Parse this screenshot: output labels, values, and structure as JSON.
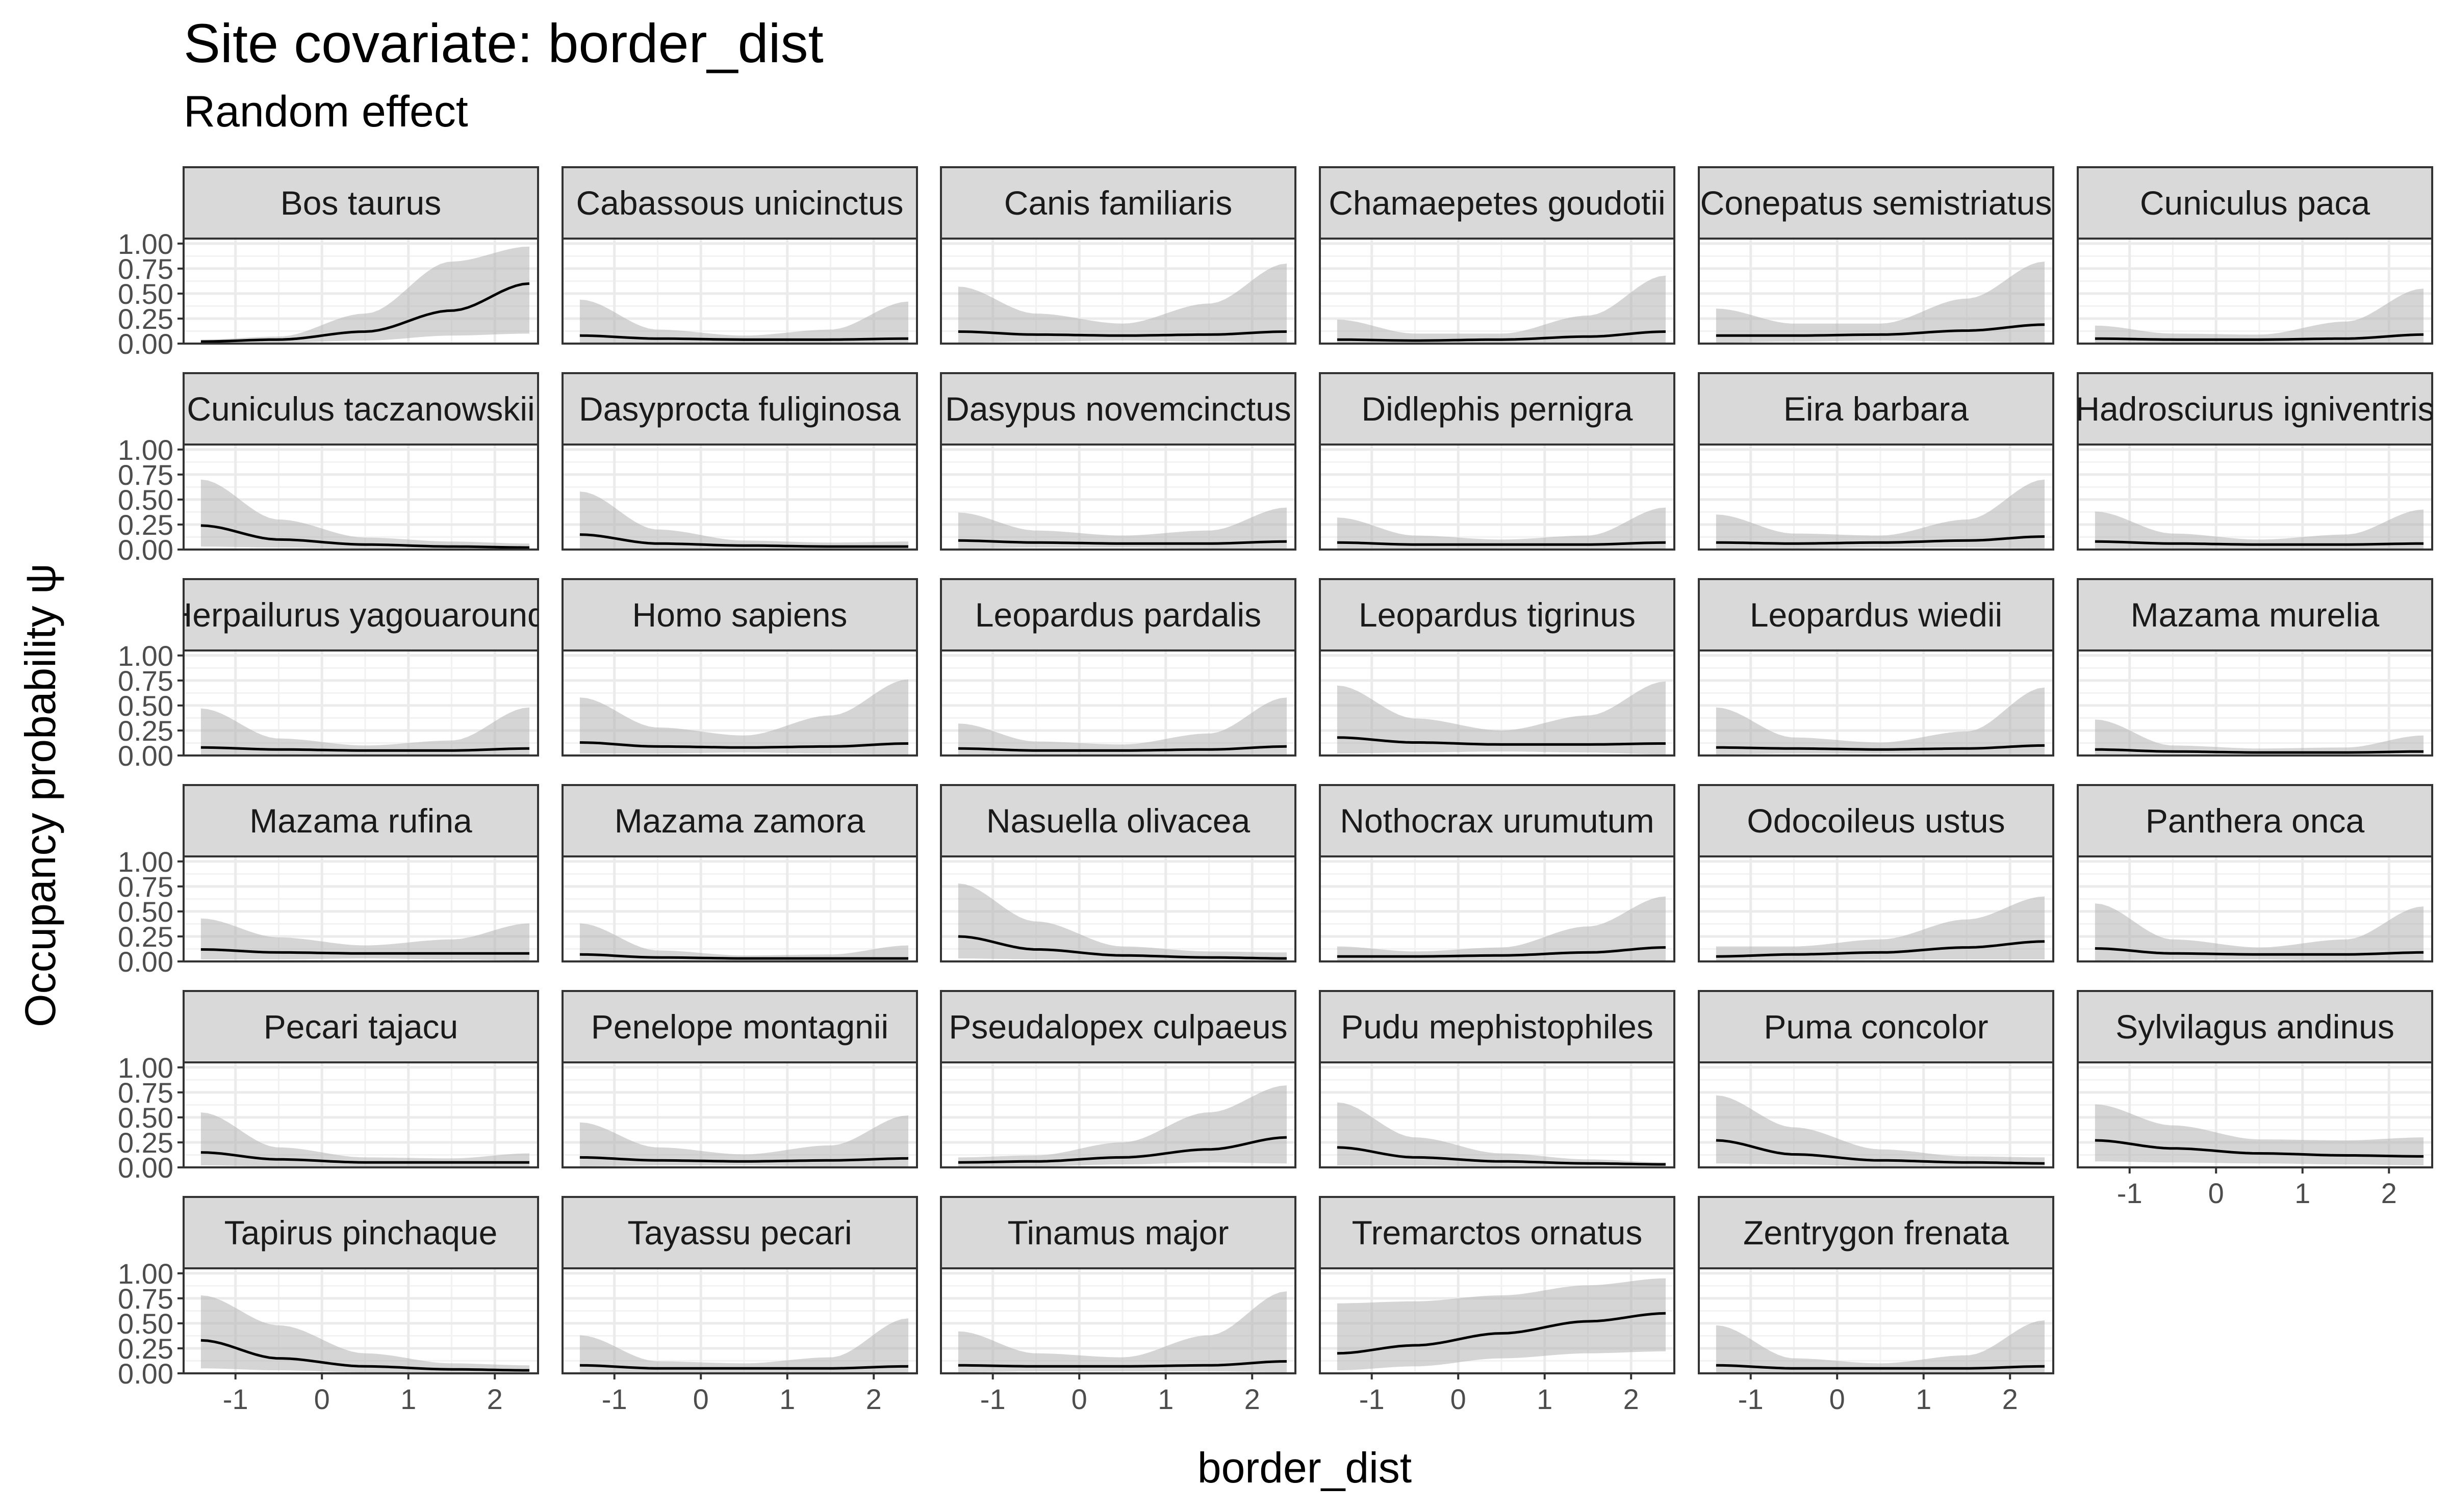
{
  "chart_data": {
    "type": "line",
    "title": "Site covariate: border_dist",
    "subtitle": "Random effect",
    "xlabel": "border_dist",
    "ylabel": "Occupancy probability  ψ",
    "xlim": [
      -1.6,
      2.5
    ],
    "ylim": [
      0,
      1.05
    ],
    "x_ticks": [
      "-1",
      "0",
      "1",
      "2"
    ],
    "y_ticks": [
      "0.00",
      "0.25",
      "0.50",
      "0.75",
      "1.00"
    ],
    "grid": true,
    "x": [
      -1.4,
      -0.5,
      0.5,
      1.5,
      2.4
    ],
    "panels": [
      {
        "name": "Bos taurus",
        "mean": [
          0.02,
          0.04,
          0.12,
          0.33,
          0.6
        ],
        "upper": [
          0.04,
          0.07,
          0.3,
          0.82,
          0.97
        ],
        "lower": [
          0.0,
          0.01,
          0.03,
          0.08,
          0.1
        ]
      },
      {
        "name": "Cabassous unicinctus",
        "mean": [
          0.08,
          0.05,
          0.04,
          0.04,
          0.05
        ],
        "upper": [
          0.44,
          0.14,
          0.08,
          0.14,
          0.42
        ],
        "lower": [
          0.01,
          0.01,
          0.01,
          0.01,
          0.01
        ]
      },
      {
        "name": "Canis familiaris",
        "mean": [
          0.12,
          0.09,
          0.08,
          0.09,
          0.12
        ],
        "upper": [
          0.57,
          0.3,
          0.2,
          0.4,
          0.8
        ],
        "lower": [
          0.01,
          0.02,
          0.03,
          0.02,
          0.01
        ]
      },
      {
        "name": "Chamaepetes goudotii",
        "mean": [
          0.04,
          0.03,
          0.04,
          0.07,
          0.12
        ],
        "upper": [
          0.24,
          0.1,
          0.1,
          0.28,
          0.68
        ],
        "lower": [
          0.0,
          0.01,
          0.01,
          0.01,
          0.01
        ]
      },
      {
        "name": "Conepatus semistriatus",
        "mean": [
          0.08,
          0.08,
          0.09,
          0.13,
          0.19
        ],
        "upper": [
          0.35,
          0.2,
          0.2,
          0.45,
          0.82
        ],
        "lower": [
          0.01,
          0.02,
          0.03,
          0.02,
          0.01
        ]
      },
      {
        "name": "Cuniculus paca",
        "mean": [
          0.05,
          0.04,
          0.04,
          0.05,
          0.09
        ],
        "upper": [
          0.18,
          0.1,
          0.09,
          0.22,
          0.55
        ],
        "lower": [
          0.0,
          0.01,
          0.01,
          0.01,
          0.01
        ]
      },
      {
        "name": "Cuniculus taczanowskii",
        "mean": [
          0.24,
          0.1,
          0.05,
          0.03,
          0.02
        ],
        "upper": [
          0.7,
          0.3,
          0.12,
          0.08,
          0.06
        ],
        "lower": [
          0.03,
          0.02,
          0.01,
          0.0,
          0.0
        ]
      },
      {
        "name": "Dasyprocta fuliginosa",
        "mean": [
          0.15,
          0.06,
          0.04,
          0.03,
          0.03
        ],
        "upper": [
          0.58,
          0.2,
          0.09,
          0.07,
          0.08
        ],
        "lower": [
          0.01,
          0.01,
          0.01,
          0.0,
          0.0
        ]
      },
      {
        "name": "Dasypus novemcinctus",
        "mean": [
          0.09,
          0.07,
          0.06,
          0.06,
          0.08
        ],
        "upper": [
          0.37,
          0.19,
          0.14,
          0.19,
          0.42
        ],
        "lower": [
          0.01,
          0.02,
          0.02,
          0.01,
          0.01
        ]
      },
      {
        "name": "Didlephis pernigra",
        "mean": [
          0.07,
          0.05,
          0.05,
          0.05,
          0.07
        ],
        "upper": [
          0.32,
          0.14,
          0.1,
          0.14,
          0.42
        ],
        "lower": [
          0.01,
          0.01,
          0.01,
          0.01,
          0.01
        ]
      },
      {
        "name": "Eira barbara",
        "mean": [
          0.07,
          0.06,
          0.07,
          0.09,
          0.13
        ],
        "upper": [
          0.35,
          0.16,
          0.14,
          0.3,
          0.7
        ],
        "lower": [
          0.01,
          0.01,
          0.02,
          0.02,
          0.01
        ]
      },
      {
        "name": "Hadrosciurus igniventris",
        "mean": [
          0.08,
          0.06,
          0.05,
          0.05,
          0.06
        ],
        "upper": [
          0.38,
          0.16,
          0.1,
          0.15,
          0.4
        ],
        "lower": [
          0.01,
          0.01,
          0.01,
          0.01,
          0.01
        ]
      },
      {
        "name": "Herpailurus yagouaroundi",
        "mean": [
          0.08,
          0.06,
          0.05,
          0.05,
          0.07
        ],
        "upper": [
          0.47,
          0.17,
          0.1,
          0.15,
          0.48
        ],
        "lower": [
          0.01,
          0.01,
          0.01,
          0.01,
          0.01
        ]
      },
      {
        "name": "Homo sapiens",
        "mean": [
          0.13,
          0.09,
          0.08,
          0.09,
          0.12
        ],
        "upper": [
          0.58,
          0.28,
          0.2,
          0.4,
          0.76
        ],
        "lower": [
          0.02,
          0.02,
          0.03,
          0.02,
          0.01
        ]
      },
      {
        "name": "Leopardus pardalis",
        "mean": [
          0.07,
          0.05,
          0.05,
          0.06,
          0.09
        ],
        "upper": [
          0.32,
          0.14,
          0.11,
          0.22,
          0.58
        ],
        "lower": [
          0.01,
          0.01,
          0.01,
          0.01,
          0.01
        ]
      },
      {
        "name": "Leopardus tigrinus",
        "mean": [
          0.18,
          0.13,
          0.11,
          0.11,
          0.12
        ],
        "upper": [
          0.7,
          0.37,
          0.25,
          0.4,
          0.74
        ],
        "lower": [
          0.02,
          0.03,
          0.04,
          0.03,
          0.01
        ]
      },
      {
        "name": "Leopardus wiedii",
        "mean": [
          0.08,
          0.07,
          0.06,
          0.07,
          0.1
        ],
        "upper": [
          0.48,
          0.18,
          0.13,
          0.24,
          0.68
        ],
        "lower": [
          0.01,
          0.02,
          0.02,
          0.01,
          0.01
        ]
      },
      {
        "name": "Mazama murelia",
        "mean": [
          0.06,
          0.04,
          0.03,
          0.03,
          0.04
        ],
        "upper": [
          0.36,
          0.1,
          0.07,
          0.08,
          0.2
        ],
        "lower": [
          0.0,
          0.01,
          0.01,
          0.0,
          0.0
        ]
      },
      {
        "name": "Mazama rufina",
        "mean": [
          0.12,
          0.09,
          0.08,
          0.08,
          0.08
        ],
        "upper": [
          0.43,
          0.24,
          0.16,
          0.22,
          0.38
        ],
        "lower": [
          0.02,
          0.02,
          0.03,
          0.02,
          0.01
        ]
      },
      {
        "name": "Mazama zamora",
        "mean": [
          0.07,
          0.04,
          0.03,
          0.03,
          0.03
        ],
        "upper": [
          0.38,
          0.11,
          0.06,
          0.07,
          0.16
        ],
        "lower": [
          0.0,
          0.01,
          0.01,
          0.0,
          0.0
        ]
      },
      {
        "name": "Nasuella olivacea",
        "mean": [
          0.25,
          0.12,
          0.06,
          0.04,
          0.03
        ],
        "upper": [
          0.78,
          0.4,
          0.15,
          0.1,
          0.09
        ],
        "lower": [
          0.03,
          0.02,
          0.01,
          0.0,
          0.0
        ]
      },
      {
        "name": "Nothocrax urumutum",
        "mean": [
          0.05,
          0.05,
          0.06,
          0.09,
          0.14
        ],
        "upper": [
          0.15,
          0.1,
          0.14,
          0.35,
          0.65
        ],
        "lower": [
          0.0,
          0.01,
          0.01,
          0.01,
          0.01
        ]
      },
      {
        "name": "Odocoileus ustus",
        "mean": [
          0.05,
          0.07,
          0.09,
          0.14,
          0.2
        ],
        "upper": [
          0.15,
          0.15,
          0.22,
          0.42,
          0.65
        ],
        "lower": [
          0.0,
          0.01,
          0.02,
          0.02,
          0.02
        ]
      },
      {
        "name": "Panthera onca",
        "mean": [
          0.13,
          0.08,
          0.07,
          0.07,
          0.09
        ],
        "upper": [
          0.58,
          0.22,
          0.14,
          0.22,
          0.55
        ],
        "lower": [
          0.01,
          0.02,
          0.02,
          0.01,
          0.01
        ]
      },
      {
        "name": "Pecari tajacu",
        "mean": [
          0.15,
          0.08,
          0.05,
          0.05,
          0.05
        ],
        "upper": [
          0.55,
          0.2,
          0.1,
          0.09,
          0.14
        ],
        "lower": [
          0.02,
          0.01,
          0.01,
          0.01,
          0.0
        ]
      },
      {
        "name": "Penelope montagnii",
        "mean": [
          0.1,
          0.07,
          0.06,
          0.07,
          0.09
        ],
        "upper": [
          0.45,
          0.2,
          0.13,
          0.22,
          0.52
        ],
        "lower": [
          0.01,
          0.02,
          0.02,
          0.01,
          0.01
        ]
      },
      {
        "name": "Pseudalopex culpaeus",
        "mean": [
          0.05,
          0.06,
          0.1,
          0.18,
          0.3
        ],
        "upper": [
          0.1,
          0.12,
          0.25,
          0.55,
          0.82
        ],
        "lower": [
          0.01,
          0.01,
          0.03,
          0.05,
          0.04
        ]
      },
      {
        "name": "Pudu mephistophiles",
        "mean": [
          0.2,
          0.1,
          0.06,
          0.04,
          0.03
        ],
        "upper": [
          0.65,
          0.3,
          0.14,
          0.08,
          0.05
        ],
        "lower": [
          0.02,
          0.02,
          0.01,
          0.0,
          0.0
        ]
      },
      {
        "name": "Puma concolor",
        "mean": [
          0.27,
          0.13,
          0.07,
          0.05,
          0.04
        ],
        "upper": [
          0.72,
          0.4,
          0.18,
          0.11,
          0.1
        ],
        "lower": [
          0.04,
          0.03,
          0.01,
          0.0,
          0.0
        ]
      },
      {
        "name": "Sylvilagus andinus",
        "mean": [
          0.27,
          0.19,
          0.14,
          0.12,
          0.11
        ],
        "upper": [
          0.63,
          0.42,
          0.28,
          0.27,
          0.3
        ],
        "lower": [
          0.06,
          0.05,
          0.04,
          0.03,
          0.02
        ]
      },
      {
        "name": "Tapirus pinchaque",
        "mean": [
          0.33,
          0.15,
          0.07,
          0.04,
          0.03
        ],
        "upper": [
          0.78,
          0.48,
          0.2,
          0.1,
          0.08
        ],
        "lower": [
          0.05,
          0.03,
          0.01,
          0.0,
          0.0
        ]
      },
      {
        "name": "Tayassu pecari",
        "mean": [
          0.08,
          0.05,
          0.05,
          0.05,
          0.07
        ],
        "upper": [
          0.38,
          0.12,
          0.1,
          0.16,
          0.55
        ],
        "lower": [
          0.01,
          0.01,
          0.01,
          0.01,
          0.01
        ]
      },
      {
        "name": "Tinamus major",
        "mean": [
          0.08,
          0.07,
          0.07,
          0.08,
          0.12
        ],
        "upper": [
          0.42,
          0.2,
          0.16,
          0.38,
          0.82
        ],
        "lower": [
          0.01,
          0.02,
          0.02,
          0.02,
          0.01
        ]
      },
      {
        "name": "Tremarctos ornatus",
        "mean": [
          0.2,
          0.28,
          0.4,
          0.52,
          0.6
        ],
        "upper": [
          0.7,
          0.72,
          0.78,
          0.88,
          0.95
        ],
        "lower": [
          0.03,
          0.07,
          0.15,
          0.2,
          0.22
        ]
      },
      {
        "name": "Zentrygon frenata",
        "mean": [
          0.08,
          0.05,
          0.05,
          0.05,
          0.07
        ],
        "upper": [
          0.48,
          0.15,
          0.1,
          0.18,
          0.53
        ],
        "lower": [
          0.01,
          0.01,
          0.01,
          0.01,
          0.01
        ]
      }
    ]
  }
}
